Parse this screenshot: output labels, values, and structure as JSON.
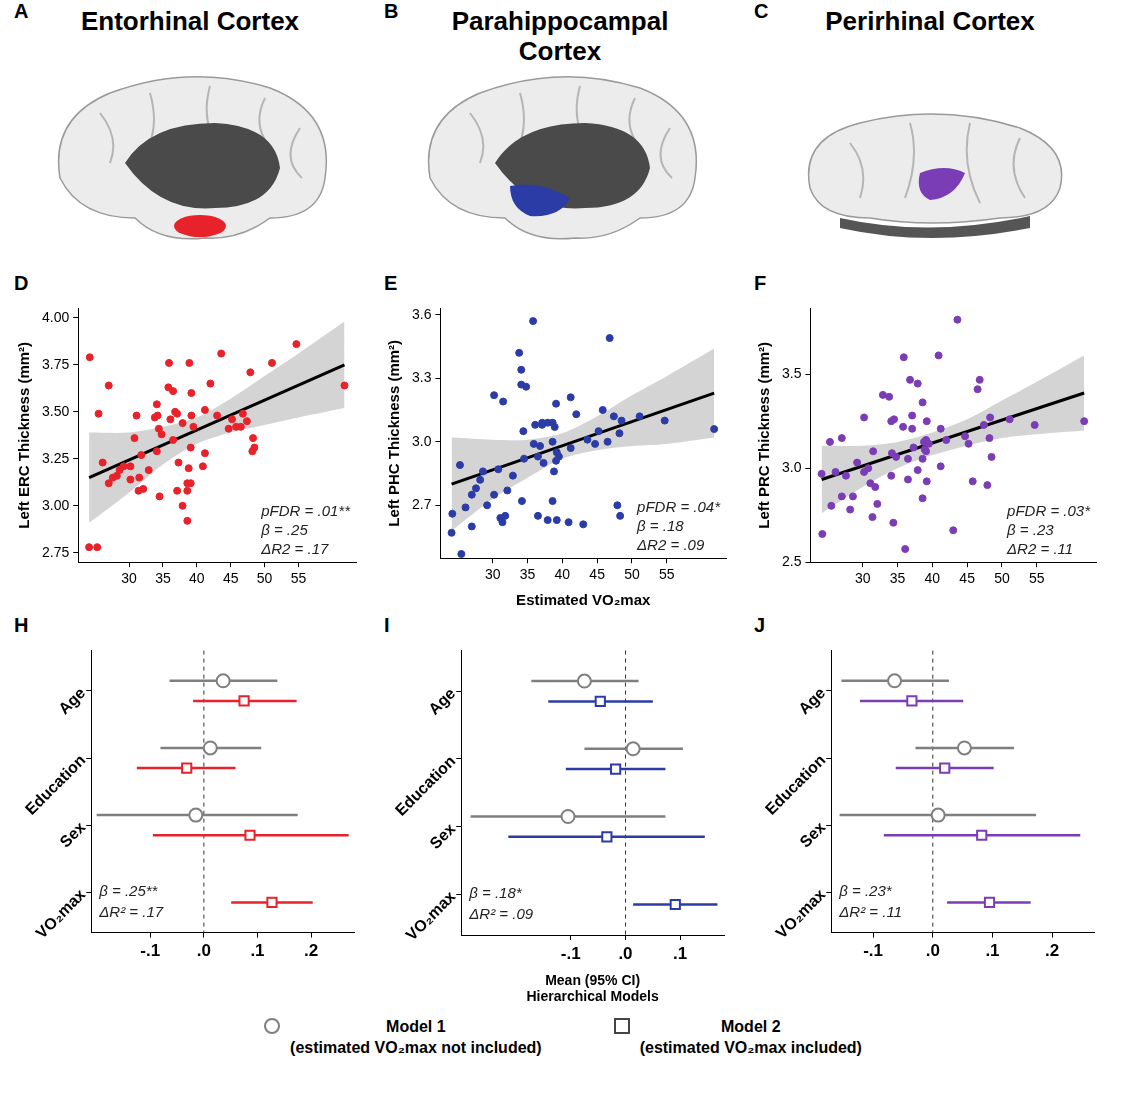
{
  "panels": [
    {
      "panel": "A",
      "title": "Entorhinal Cortex",
      "color": "#e8222a"
    },
    {
      "panel": "B",
      "title": "Parahippocampal Cortex",
      "color": "#2b3ca6"
    },
    {
      "panel": "C",
      "title": "Perirhinal Cortex",
      "color": "#7b3db5"
    }
  ],
  "chart_data": [
    {
      "panel": "D",
      "type": "scatter",
      "ylabel": "Left ERC Thickness (mm²)",
      "color": "#e8222a",
      "grid": false,
      "xlim": [
        22.5,
        63.5
      ],
      "xticks": [
        30,
        35,
        40,
        45,
        50,
        55
      ],
      "ylim": [
        2.7,
        4.05
      ],
      "yticks": [
        2.75,
        {
          "value": 3,
          "label": "3.00"
        },
        3.25,
        {
          "value": 3.5,
          "label": "3.50"
        },
        3.75,
        {
          "value": 4,
          "label": "4.00"
        }
      ],
      "x": [
        24.2,
        24.1,
        25.3,
        25.5,
        27.0,
        26.1,
        27.0,
        27.6,
        28.2,
        28.6,
        29.2,
        30.2,
        30.2,
        30.8,
        31.1,
        31.5,
        31.8,
        31.4,
        32.1,
        32.9,
        34.1,
        33.8,
        34.1,
        34.2,
        34.4,
        34.5,
        34.8,
        35.8,
        35.9,
        36.1,
        36.5,
        36.5,
        36.8,
        37.1,
        37.1,
        37.3,
        37.9,
        37.9,
        38.6,
        38.8,
        38.9,
        39.1,
        39.2,
        39.2,
        39.1,
        38.6,
        38.6,
        39.5,
        40.9,
        41.2,
        41.2,
        42.0,
        43.0,
        43.6,
        44.7,
        45.2,
        45.8,
        46.5,
        46.8,
        47.4,
        47.9,
        48.3,
        48.5,
        48.2,
        51.1,
        54.7,
        61.8
      ],
      "values": [
        3.79,
        2.78,
        2.78,
        3.49,
        3.64,
        3.23,
        3.12,
        3.15,
        3.16,
        3.19,
        3.21,
        3.14,
        3.21,
        3.36,
        3.48,
        3.15,
        3.27,
        3.08,
        3.09,
        3.19,
        3.29,
        3.47,
        3.54,
        3.48,
        3.41,
        3.05,
        3.38,
        3.63,
        3.76,
        3.46,
        3.61,
        3.35,
        3.5,
        3.08,
        3.49,
        3.23,
        3.44,
        3.0,
        2.92,
        3.2,
        3.76,
        3.12,
        3.6,
        3.48,
        3.31,
        3.12,
        3.08,
        3.42,
        3.21,
        3.28,
        3.51,
        3.65,
        3.48,
        3.81,
        3.41,
        3.46,
        3.42,
        3.42,
        3.49,
        3.45,
        3.71,
        3.36,
        3.31,
        3.29,
        3.76,
        3.86,
        3.64
      ],
      "fit": {
        "x": [
          24.1,
          61.8
        ],
        "values": [
          3.15,
          3.75
        ]
      },
      "ci_band": {
        "x": [
          24.1,
          30,
          35,
          40,
          45,
          50,
          55,
          61.8
        ],
        "lower": [
          2.91,
          3.07,
          3.22,
          3.33,
          3.39,
          3.43,
          3.47,
          3.52
        ],
        "upper": [
          3.39,
          3.39,
          3.42,
          3.47,
          3.57,
          3.69,
          3.81,
          3.98
        ]
      },
      "annotations": [
        "pFDR = .01**",
        "β = .25",
        "ΔR2 = .17"
      ]
    },
    {
      "panel": "E",
      "type": "scatter",
      "ylabel": "Left PHC Thickness (mm²)",
      "xlabel": "Estimated VO₂max",
      "color": "#2b3ca6",
      "grid": false,
      "xlim": [
        22.5,
        63.5
      ],
      "xticks": [
        30,
        35,
        40,
        45,
        50,
        55
      ],
      "ylim": [
        2.45,
        3.63
      ],
      "yticks": [
        2.7,
        {
          "value": 3,
          "label": "3.0"
        },
        3.3,
        3.6
      ],
      "x": [
        24.2,
        24.1,
        25.3,
        25.5,
        27.0,
        26.1,
        27.0,
        27.6,
        28.2,
        28.6,
        29.2,
        30.2,
        30.2,
        30.8,
        31.1,
        31.5,
        31.8,
        31.4,
        32.1,
        32.9,
        34.1,
        33.8,
        34.1,
        34.2,
        34.4,
        34.5,
        34.8,
        35.8,
        35.9,
        36.1,
        36.5,
        36.5,
        36.8,
        37.1,
        37.1,
        37.3,
        37.9,
        37.9,
        38.6,
        38.8,
        38.9,
        39.1,
        39.2,
        39.2,
        39.1,
        38.6,
        38.6,
        39.5,
        40.9,
        41.2,
        41.2,
        42.0,
        43.0,
        43.6,
        44.7,
        45.2,
        45.8,
        46.5,
        46.8,
        47.4,
        47.9,
        48.3,
        48.5,
        48.2,
        51.1,
        54.7,
        61.8
      ],
      "values": [
        2.66,
        2.57,
        2.89,
        2.47,
        2.6,
        2.69,
        2.75,
        2.78,
        2.82,
        2.86,
        2.7,
        3.22,
        2.75,
        2.87,
        2.64,
        3.19,
        2.65,
        2.62,
        2.77,
        2.84,
        3.34,
        3.42,
        3.27,
        2.72,
        3.05,
        2.92,
        3.26,
        3.57,
        2.99,
        3.08,
        2.93,
        2.65,
        2.98,
        3.08,
        3.09,
        2.9,
        3.09,
        2.63,
        3.0,
        2.86,
        3.07,
        3.18,
        2.95,
        2.63,
        2.91,
        3.09,
        2.72,
        2.93,
        2.62,
        2.97,
        3.21,
        3.13,
        2.61,
        3.01,
        2.99,
        3.05,
        3.15,
        3.0,
        3.49,
        3.12,
        2.7,
        2.65,
        3.1,
        3.04,
        3.12,
        3.1,
        3.06
      ],
      "fit": {
        "x": [
          24.1,
          61.8
        ],
        "values": [
          2.8,
          3.23
        ]
      },
      "ci_band": {
        "x": [
          24.1,
          30,
          35,
          40,
          45,
          50,
          55,
          61.8
        ],
        "lower": [
          2.58,
          2.73,
          2.83,
          2.92,
          2.96,
          2.98,
          2.99,
          3.02
        ],
        "upper": [
          3.02,
          3.01,
          3.01,
          3.04,
          3.12,
          3.22,
          3.31,
          3.44
        ]
      },
      "annotations": [
        "pFDR = .04*",
        "β = .18",
        "ΔR2 = .09"
      ]
    },
    {
      "panel": "F",
      "type": "scatter",
      "ylabel": "Left PRC Thickness (mm²)",
      "color": "#7b3db5",
      "grid": false,
      "xlim": [
        22.5,
        63.5
      ],
      "xticks": [
        30,
        35,
        40,
        45,
        50,
        55
      ],
      "ylim": [
        2.5,
        3.85
      ],
      "yticks": [
        2.5,
        {
          "value": 3,
          "label": "3.0"
        },
        3.5
      ],
      "x": [
        24.2,
        24.1,
        25.3,
        25.5,
        27.0,
        26.1,
        27.0,
        27.6,
        28.2,
        28.6,
        29.2,
        30.2,
        30.2,
        30.8,
        31.1,
        31.5,
        31.8,
        31.4,
        32.1,
        32.9,
        34.1,
        33.8,
        34.1,
        34.2,
        34.4,
        34.5,
        34.8,
        35.8,
        35.9,
        36.1,
        36.5,
        36.5,
        36.8,
        37.1,
        37.1,
        37.3,
        37.9,
        37.9,
        38.6,
        38.8,
        38.9,
        39.1,
        39.2,
        39.2,
        39.1,
        38.6,
        38.6,
        39.5,
        40.9,
        41.2,
        41.2,
        42.0,
        43.0,
        43.6,
        44.7,
        45.2,
        45.8,
        46.5,
        46.8,
        47.4,
        47.9,
        48.3,
        48.5,
        48.2,
        51.1,
        54.7,
        61.8
      ],
      "values": [
        2.65,
        2.97,
        3.14,
        2.8,
        2.85,
        2.98,
        3.16,
        2.96,
        2.78,
        2.85,
        3.03,
        2.98,
        3.27,
        3.0,
        2.92,
        3.09,
        2.9,
        2.74,
        2.81,
        3.39,
        3.25,
        3.38,
        2.96,
        3.08,
        2.71,
        3.26,
        3.06,
        3.22,
        3.59,
        2.57,
        3.05,
        2.94,
        3.47,
        3.21,
        3.28,
        3.11,
        2.99,
        3.45,
        3.05,
        3.14,
        3.1,
        3.15,
        3.25,
        2.93,
        3.09,
        3.35,
        2.84,
        3.13,
        3.6,
        3.01,
        3.21,
        3.15,
        2.67,
        3.79,
        3.17,
        3.13,
        2.93,
        3.42,
        3.47,
        3.23,
        2.91,
        3.27,
        3.06,
        3.16,
        3.26,
        3.23,
        3.25
      ],
      "fit": {
        "x": [
          24.1,
          61.8
        ],
        "values": [
          2.94,
          3.4
        ]
      },
      "ci_band": {
        "x": [
          24.1,
          30,
          35,
          40,
          45,
          50,
          55,
          61.8
        ],
        "lower": [
          2.76,
          2.9,
          3.0,
          3.07,
          3.12,
          3.16,
          3.18,
          3.2
        ],
        "upper": [
          3.12,
          3.12,
          3.14,
          3.19,
          3.26,
          3.36,
          3.46,
          3.6
        ]
      },
      "annotations": [
        "pFDR = .03*",
        "β = .23",
        "ΔR2 = .11"
      ]
    },
    {
      "panel": "H",
      "type": "forest",
      "grid": false,
      "zero_line": 0,
      "categories": [
        "Age",
        "Education",
        "Sex",
        "VO₂max"
      ],
      "xlim": [
        -0.21,
        0.28
      ],
      "xticks": [
        {
          "value": -0.1,
          "label": "-.1"
        },
        {
          "value": 0,
          "label": ".0"
        },
        {
          "value": 0.1,
          "label": ".1"
        },
        {
          "value": 0.2,
          "label": ".2"
        }
      ],
      "series": [
        {
          "name": "Model 1 (estimated VO₂max not included)",
          "color": "#7f7f7f",
          "marker": "circle",
          "values": [
            0.036,
            0.012,
            -0.015,
            null
          ],
          "lower": [
            -0.064,
            -0.081,
            -0.2,
            null
          ],
          "upper": [
            0.137,
            0.107,
            0.175,
            null
          ]
        },
        {
          "name": "Model 2 (estimated VO₂max included)",
          "color": "#e8222a",
          "marker": "square",
          "values": [
            0.075,
            -0.032,
            0.086,
            0.127
          ],
          "lower": [
            -0.02,
            -0.125,
            -0.095,
            0.051
          ],
          "upper": [
            0.173,
            0.059,
            0.27,
            0.203
          ]
        }
      ],
      "annotations": [
        "β = .25**",
        "ΔR² = .17"
      ]
    },
    {
      "panel": "I",
      "type": "forest",
      "grid": false,
      "zero_line": 0,
      "legend": "bottom",
      "xlabel": [
        "Mean (95% CI)",
        "Hierarchical Models"
      ],
      "categories": [
        "Age",
        "Education",
        "Sex",
        "VO₂max"
      ],
      "xlim": [
        -0.3,
        0.18
      ],
      "xticks": [
        {
          "value": -0.1,
          "label": "-.1"
        },
        {
          "value": 0,
          "label": ".0"
        },
        {
          "value": 0.1,
          "label": ".1"
        }
      ],
      "series": [
        {
          "name": "Model 1 (estimated VO₂max not included)",
          "color": "#7f7f7f",
          "marker": "circle",
          "values": [
            -0.075,
            0.014,
            -0.105,
            null
          ],
          "lower": [
            -0.172,
            -0.075,
            -0.283,
            null
          ],
          "upper": [
            0.024,
            0.105,
            0.073,
            null
          ]
        },
        {
          "name": "Model 2 (estimated VO₂max included)",
          "color": "#2b3ca6",
          "marker": "square",
          "values": [
            -0.046,
            -0.018,
            -0.034,
            0.091
          ],
          "lower": [
            -0.141,
            -0.109,
            -0.214,
            0.014
          ],
          "upper": [
            0.05,
            0.073,
            0.145,
            0.168
          ]
        }
      ],
      "annotations": [
        "β = .18*",
        "ΔR² = .09"
      ]
    },
    {
      "panel": "J",
      "type": "forest",
      "grid": false,
      "zero_line": 0,
      "categories": [
        "Age",
        "Education",
        "Sex",
        "VO₂max"
      ],
      "xlim": [
        -0.17,
        0.27
      ],
      "xticks": [
        {
          "value": -0.1,
          "label": "-.1"
        },
        {
          "value": 0,
          "label": ".0"
        },
        {
          "value": 0.1,
          "label": ".1"
        },
        {
          "value": 0.2,
          "label": ".2"
        }
      ],
      "series": [
        {
          "name": "Model 1 (estimated VO₂max not included)",
          "color": "#7f7f7f",
          "marker": "circle",
          "values": [
            -0.064,
            0.053,
            0.009,
            null
          ],
          "lower": [
            -0.153,
            -0.029,
            -0.156,
            null
          ],
          "upper": [
            0.027,
            0.136,
            0.173,
            null
          ]
        },
        {
          "name": "Model 2 (estimated VO₂max included)",
          "color": "#7b3db5",
          "marker": "square",
          "values": [
            -0.035,
            0.02,
            0.082,
            0.095
          ],
          "lower": [
            -0.122,
            -0.062,
            -0.082,
            0.024
          ],
          "upper": [
            0.051,
            0.102,
            0.247,
            0.164
          ]
        }
      ],
      "annotations": [
        "β = .23*",
        "ΔR² = .11"
      ]
    }
  ]
}
